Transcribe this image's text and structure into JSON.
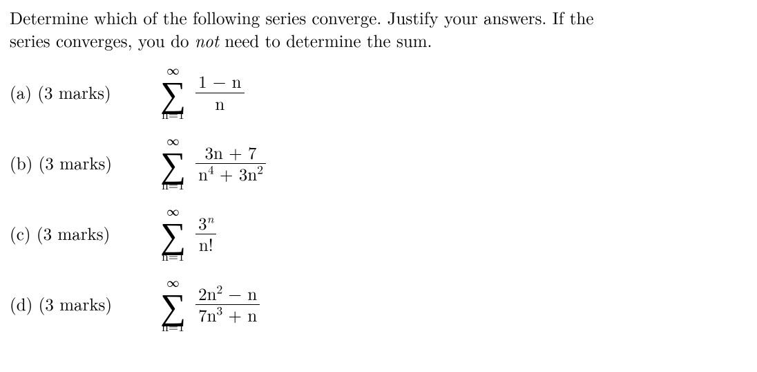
{
  "instructions": {
    "line1": "Determine which of the following series converge.  Justify your answers.  If the",
    "line2_pre": "series converges, you do ",
    "line2_italic": "not",
    "line2_post": " need to determine the sum."
  },
  "sum_symbol": "∑",
  "sum_upper": "∞",
  "items": [
    {
      "label": "(a)  (3 marks) ",
      "lower": "n=1",
      "numerator": "1 − n",
      "denominator": "n"
    },
    {
      "label": "(b)  (3 marks) ",
      "lower": "n=1",
      "numerator": "3n + 7",
      "den_parts": {
        "a": "n",
        "a_exp": "4",
        "mid": " + 3n",
        "b_exp": "2"
      }
    },
    {
      "label": "(c)  (3 marks) ",
      "lower": "n=1",
      "num_parts": {
        "base": "3",
        "exp": "n"
      },
      "denominator": "n!"
    },
    {
      "label": "(d)  (3 marks) ",
      "lower": "n=1",
      "num_parts_d": {
        "a": "2n",
        "a_exp": "2",
        "rest": " − n"
      },
      "den_parts_d": {
        "a": "7n",
        "a_exp": "3",
        "rest": " + n"
      }
    }
  ]
}
